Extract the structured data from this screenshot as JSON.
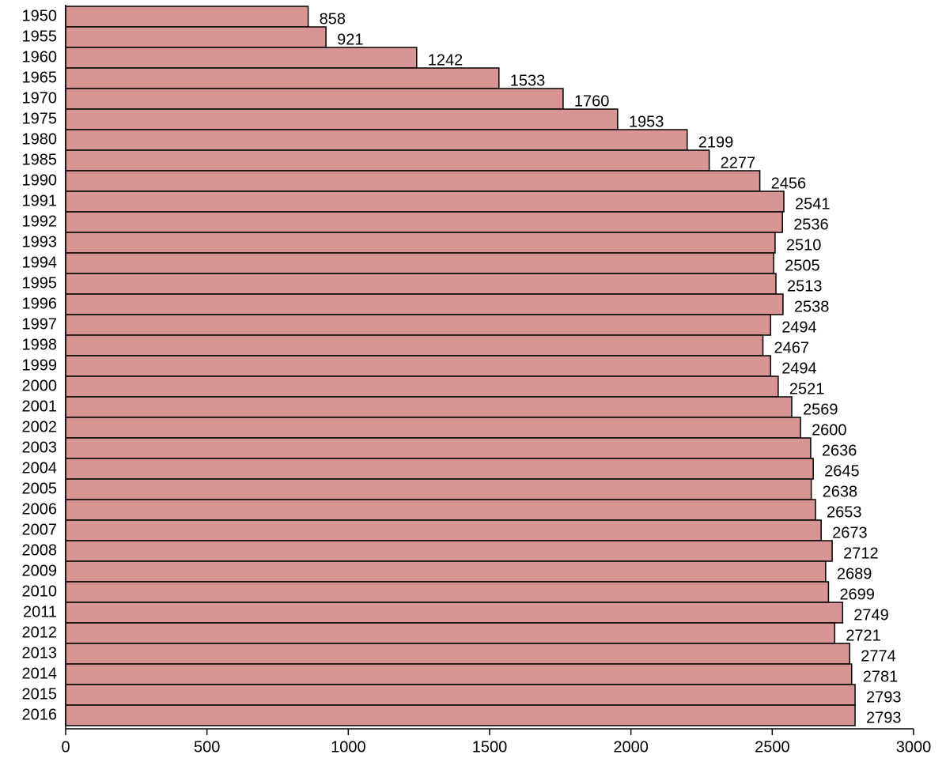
{
  "chart_data": {
    "type": "barh",
    "categories": [
      "1950",
      "1955",
      "1960",
      "1965",
      "1970",
      "1975",
      "1980",
      "1985",
      "1990",
      "1991",
      "1992",
      "1993",
      "1994",
      "1995",
      "1996",
      "1997",
      "1998",
      "1999",
      "2000",
      "2001",
      "2002",
      "2003",
      "2004",
      "2005",
      "2006",
      "2007",
      "2008",
      "2009",
      "2010",
      "2011",
      "2012",
      "2013",
      "2014",
      "2015",
      "2016"
    ],
    "values": [
      858,
      921,
      1242,
      1533,
      1760,
      1953,
      2199,
      2277,
      2456,
      2541,
      2536,
      2510,
      2505,
      2513,
      2538,
      2494,
      2467,
      2494,
      2521,
      2569,
      2600,
      2636,
      2645,
      2638,
      2653,
      2673,
      2712,
      2689,
      2699,
      2749,
      2721,
      2774,
      2781,
      2793,
      2793
    ],
    "color": "#d99594",
    "xlim": [
      0,
      3000
    ],
    "xticks": [
      0,
      500,
      1000,
      1500,
      2000,
      2500,
      3000
    ]
  }
}
